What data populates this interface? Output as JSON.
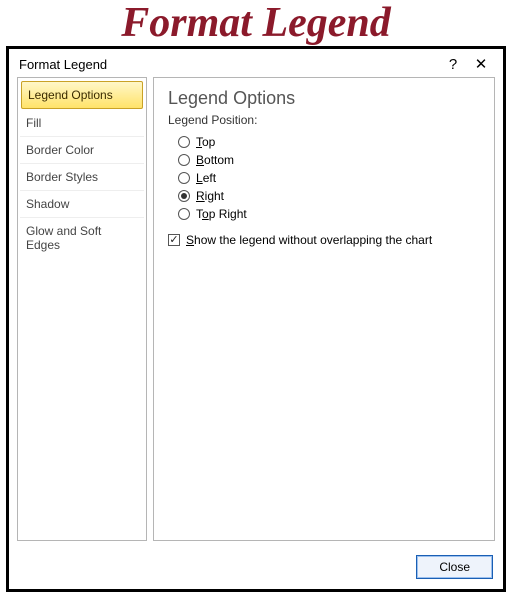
{
  "page_title": "Format Legend",
  "dialog": {
    "title": "Format Legend",
    "help_symbol": "?",
    "close_symbol": "✕"
  },
  "sidebar": {
    "items": [
      {
        "label": "Legend Options",
        "selected": true
      },
      {
        "label": "Fill",
        "selected": false
      },
      {
        "label": "Border Color",
        "selected": false
      },
      {
        "label": "Border Styles",
        "selected": false
      },
      {
        "label": "Shadow",
        "selected": false
      },
      {
        "label": "Glow and Soft Edges",
        "selected": false
      }
    ]
  },
  "content": {
    "heading": "Legend Options",
    "subheading": "Legend Position:",
    "radios": [
      {
        "label": "Top",
        "accel_index": 0,
        "checked": false
      },
      {
        "label": "Bottom",
        "accel_index": 0,
        "checked": false
      },
      {
        "label": "Left",
        "accel_index": 0,
        "checked": false
      },
      {
        "label": "Right",
        "accel_index": 0,
        "checked": true
      },
      {
        "label": "Top Right",
        "accel_index": 1,
        "checked": false
      }
    ],
    "checkbox": {
      "label": "Show the legend without overlapping the chart",
      "accel_index": 0,
      "checked": true
    }
  },
  "footer": {
    "close_label": "Close"
  },
  "colors": {
    "page_title": "#8b1a2b",
    "outer_border": "#000000",
    "panel_border": "#b5b5b5",
    "selected_bg_top": "#fff7c8",
    "selected_bg_bottom": "#ffe36a",
    "selected_border": "#c9a227",
    "close_btn_border": "#1a5fb4",
    "close_btn_bg": "#eef3fb"
  }
}
